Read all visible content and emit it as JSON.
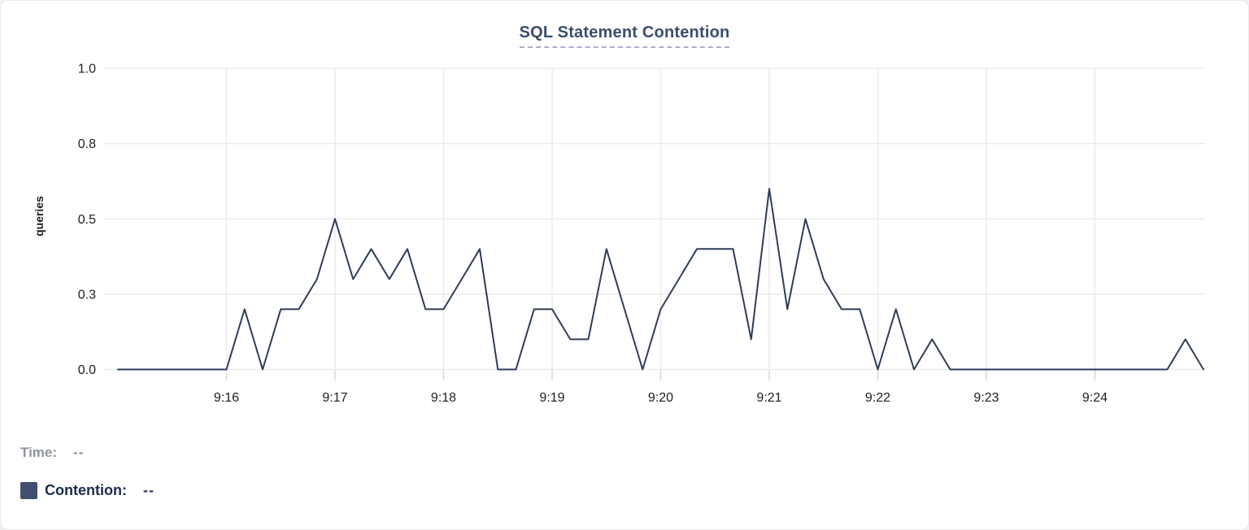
{
  "header": {
    "title": "SQL Statement Contention"
  },
  "legend": {
    "time_label": "Time:",
    "time_value": "--",
    "contention_label": "Contention:",
    "contention_value": "--",
    "swatch_color": "#41506e"
  },
  "colors": {
    "line": "#2f3c5c",
    "title": "#3b4d6e",
    "title_dash": "#a9b0d4",
    "gridline": "#ececec",
    "tick_stub": "#d8d8d8",
    "tick_text": "#202024",
    "card_background": "#ffffff"
  },
  "chart_data": {
    "type": "line",
    "title": "SQL Statement Contention",
    "xlabel": "",
    "ylabel": "queries",
    "ylim": [
      0,
      1
    ],
    "grid": true,
    "legend_position": "bottom-left",
    "x_range": [
      "9:15:00",
      "9:25:00"
    ],
    "interval_seconds": 10,
    "x_tick_labels": [
      "9:16",
      "9:17",
      "9:18",
      "9:19",
      "9:20",
      "9:21",
      "9:22",
      "9:23",
      "9:24"
    ],
    "y_ticks": [
      {
        "value": 0,
        "label": "0.0"
      },
      {
        "value": 0.25,
        "label": "0.3"
      },
      {
        "value": 0.5,
        "label": "0.5"
      },
      {
        "value": 0.75,
        "label": "0.8"
      },
      {
        "value": 1.0,
        "label": "1.0"
      }
    ],
    "series": [
      {
        "name": "Contention",
        "unit": "queries",
        "color": "#2f3c5c",
        "x": [
          "9:15:00",
          "9:15:10",
          "9:15:20",
          "9:15:30",
          "9:15:40",
          "9:15:50",
          "9:16:00",
          "9:16:10",
          "9:16:20",
          "9:16:30",
          "9:16:40",
          "9:16:50",
          "9:17:00",
          "9:17:10",
          "9:17:20",
          "9:17:30",
          "9:17:40",
          "9:17:50",
          "9:18:00",
          "9:18:10",
          "9:18:20",
          "9:18:30",
          "9:18:40",
          "9:18:50",
          "9:19:00",
          "9:19:10",
          "9:19:20",
          "9:19:30",
          "9:19:40",
          "9:19:50",
          "9:20:00",
          "9:20:10",
          "9:20:20",
          "9:20:30",
          "9:20:40",
          "9:20:50",
          "9:21:00",
          "9:21:10",
          "9:21:20",
          "9:21:30",
          "9:21:40",
          "9:21:50",
          "9:22:00",
          "9:22:10",
          "9:22:20",
          "9:22:30",
          "9:22:40",
          "9:22:50",
          "9:23:00",
          "9:23:10",
          "9:23:20",
          "9:23:30",
          "9:23:40",
          "9:23:50",
          "9:24:00",
          "9:24:10",
          "9:24:20",
          "9:24:30",
          "9:24:40",
          "9:24:50",
          "9:25:00"
        ],
        "values": [
          0,
          0,
          0,
          0,
          0,
          0,
          0,
          0.2,
          0,
          0.2,
          0.2,
          0.3,
          0.5,
          0.3,
          0.4,
          0.3,
          0.4,
          0.2,
          0.2,
          0.3,
          0.4,
          0,
          0,
          0.2,
          0.2,
          0.1,
          0.1,
          0.4,
          0.2,
          0,
          0.2,
          0.3,
          0.4,
          0.4,
          0.4,
          0.1,
          0.6,
          0.2,
          0.5,
          0.3,
          0.2,
          0.2,
          0,
          0.2,
          0,
          0.1,
          0,
          0,
          0,
          0,
          0,
          0,
          0,
          0,
          0,
          0,
          0,
          0,
          0,
          0.1,
          0
        ]
      }
    ]
  }
}
